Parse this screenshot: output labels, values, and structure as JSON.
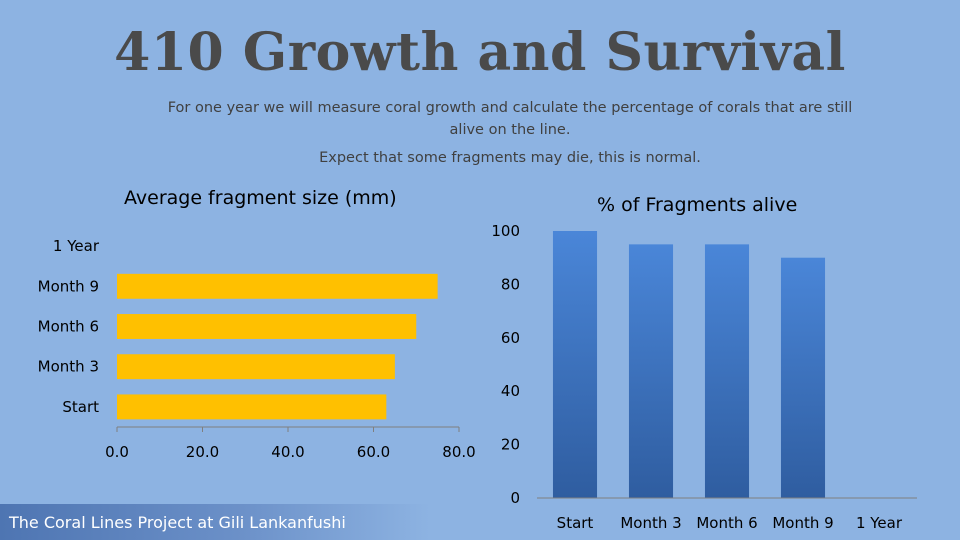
{
  "slide": {
    "title": "410 Growth and Survival",
    "subtitle_line1": "For one year we will measure coral growth and calculate the percentage of corals that are still alive on the line.",
    "subtitle_line2": "Expect that some fragments may die, this is normal.",
    "footer": "The Coral Lines Project at Gili Lankanfushi"
  },
  "colors": {
    "background": "#8db3e2",
    "hbar": "#ffc000",
    "vbar_top": "#4a86d8",
    "vbar_bottom": "#2f5da0",
    "axis": "#7f7f7f"
  },
  "chart_data": [
    {
      "type": "bar",
      "orientation": "horizontal",
      "title": "Average fragment size (mm)",
      "categories": [
        "Start",
        "Month 3",
        "Month 6",
        "Month 9",
        "1 Year"
      ],
      "values": [
        63,
        65,
        70,
        75,
        null
      ],
      "xlim": [
        0,
        80
      ],
      "xticks": [
        "0.0",
        "20.0",
        "40.0",
        "60.0",
        "80.0"
      ],
      "grid": false
    },
    {
      "type": "bar",
      "orientation": "vertical",
      "title": "% of Fragments alive",
      "categories": [
        "Start",
        "Month 3",
        "Month 6",
        "Month 9",
        "1 Year"
      ],
      "values": [
        100,
        95,
        95,
        90,
        null
      ],
      "ylim": [
        0,
        100
      ],
      "yticks": [
        "0",
        "20",
        "40",
        "60",
        "80",
        "100"
      ],
      "grid": false
    }
  ]
}
